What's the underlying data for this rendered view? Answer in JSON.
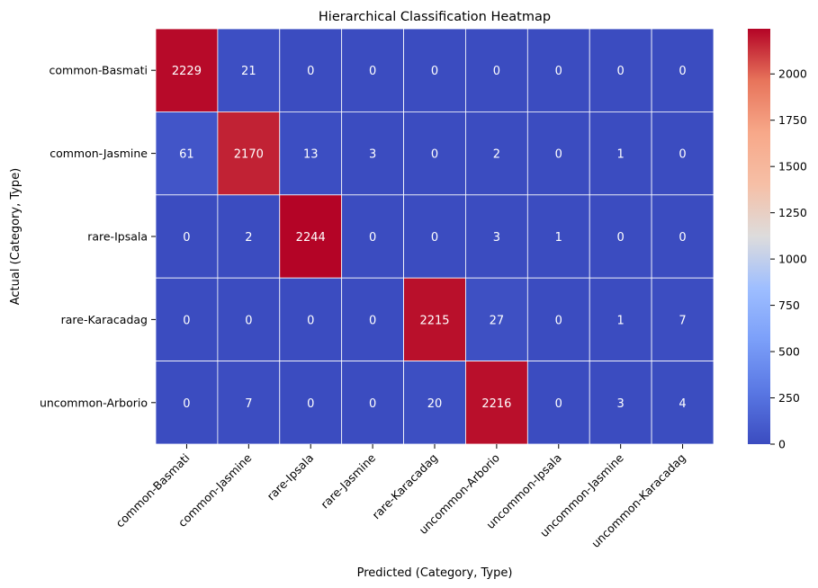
{
  "chart_data": {
    "type": "heatmap",
    "title": "Hierarchical Classification Heatmap",
    "xlabel": "Predicted (Category, Type)",
    "ylabel": "Actual (Category, Type)",
    "x_categories": [
      "common-Basmati",
      "common-Jasmine",
      "rare-Ipsala",
      "rare-Jasmine",
      "rare-Karacadag",
      "uncommon-Arborio",
      "uncommon-Ipsala",
      "uncommon-Jasmine",
      "uncommon-Karacadag"
    ],
    "y_categories": [
      "common-Basmati",
      "common-Jasmine",
      "rare-Ipsala",
      "rare-Karacadag",
      "uncommon-Arborio"
    ],
    "values": [
      [
        2229,
        21,
        0,
        0,
        0,
        0,
        0,
        0,
        0
      ],
      [
        61,
        2170,
        13,
        3,
        0,
        2,
        0,
        1,
        0
      ],
      [
        0,
        2,
        2244,
        0,
        0,
        3,
        1,
        0,
        0
      ],
      [
        0,
        0,
        0,
        0,
        2215,
        27,
        0,
        1,
        7
      ],
      [
        0,
        7,
        0,
        0,
        20,
        2216,
        0,
        3,
        4
      ]
    ],
    "colormap": "coolwarm",
    "colorbar": {
      "range": [
        0,
        2244
      ],
      "ticks": [
        0,
        250,
        500,
        750,
        1000,
        1250,
        1500,
        1750,
        2000
      ]
    },
    "annotations": true,
    "cell_separator_color": "#ffffff"
  }
}
